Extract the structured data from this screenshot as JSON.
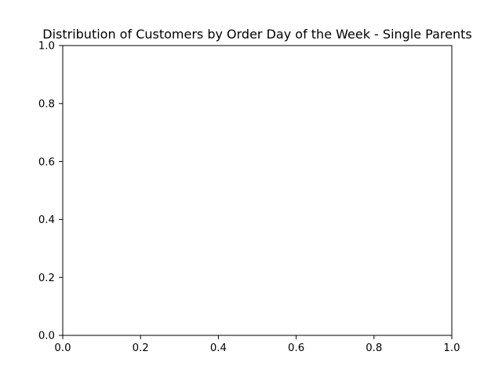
{
  "chart_data": {
    "type": "bar",
    "title": "Distribution of Customers by Order Day of the Week - Single Parents",
    "xlabel": "",
    "ylabel": "",
    "xlim": [
      0.0,
      1.0
    ],
    "ylim": [
      0.0,
      1.0
    ],
    "x_ticks": [
      "0.0",
      "0.2",
      "0.4",
      "0.6",
      "0.8",
      "1.0"
    ],
    "y_ticks": [
      "0.0",
      "0.2",
      "0.4",
      "0.6",
      "0.8",
      "1.0"
    ],
    "categories": [],
    "values": [],
    "grid": false,
    "legend": "none"
  }
}
